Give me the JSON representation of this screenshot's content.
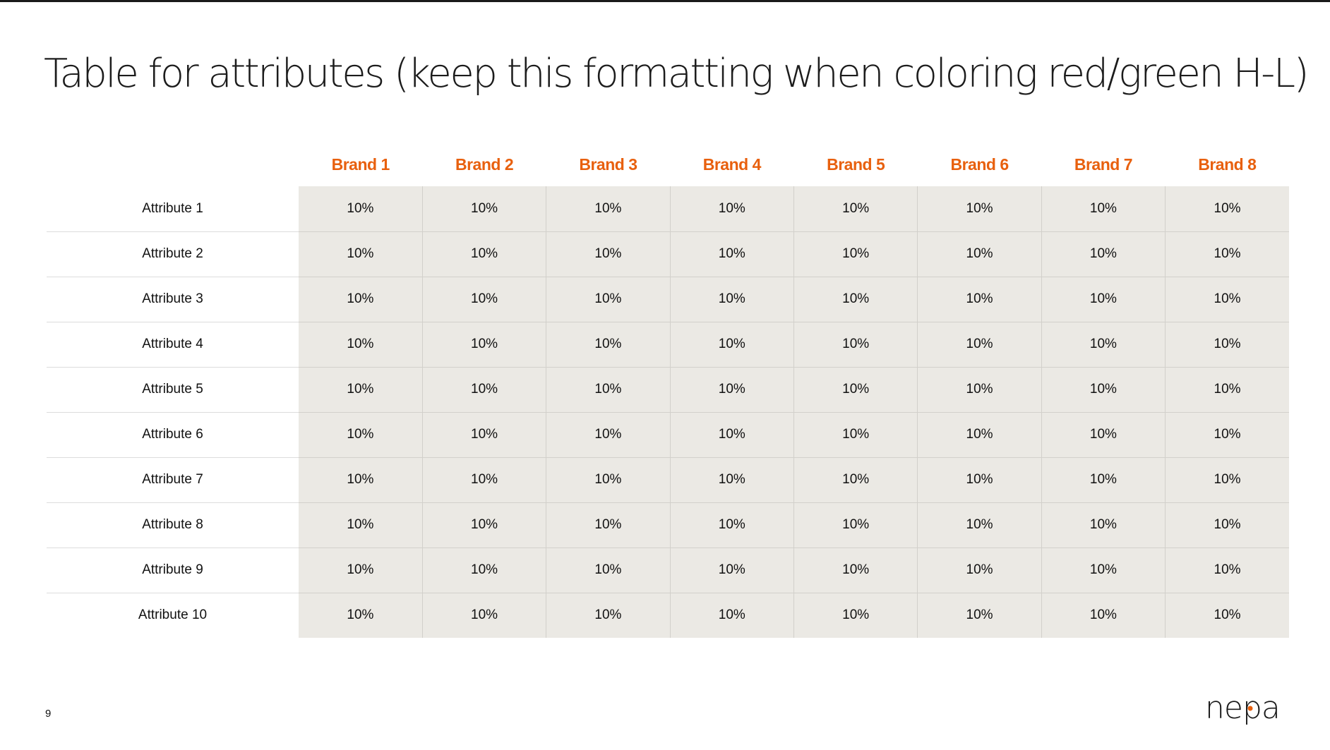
{
  "slide": {
    "title": "Table for attributes (keep this formatting when coloring red/green H-L)",
    "page_number": "9",
    "logo_text": "nepa"
  },
  "colors": {
    "header_text": "#e8600e",
    "cell_background": "#ebe9e4",
    "logo_dot": "#e8600e"
  },
  "table": {
    "columns": [
      "Brand 1",
      "Brand 2",
      "Brand 3",
      "Brand 4",
      "Brand 5",
      "Brand 6",
      "Brand 7",
      "Brand 8"
    ],
    "rows": [
      {
        "label": "Attribute 1",
        "values": [
          "10%",
          "10%",
          "10%",
          "10%",
          "10%",
          "10%",
          "10%",
          "10%"
        ]
      },
      {
        "label": "Attribute 2",
        "values": [
          "10%",
          "10%",
          "10%",
          "10%",
          "10%",
          "10%",
          "10%",
          "10%"
        ]
      },
      {
        "label": "Attribute 3",
        "values": [
          "10%",
          "10%",
          "10%",
          "10%",
          "10%",
          "10%",
          "10%",
          "10%"
        ]
      },
      {
        "label": "Attribute 4",
        "values": [
          "10%",
          "10%",
          "10%",
          "10%",
          "10%",
          "10%",
          "10%",
          "10%"
        ]
      },
      {
        "label": "Attribute 5",
        "values": [
          "10%",
          "10%",
          "10%",
          "10%",
          "10%",
          "10%",
          "10%",
          "10%"
        ]
      },
      {
        "label": "Attribute 6",
        "values": [
          "10%",
          "10%",
          "10%",
          "10%",
          "10%",
          "10%",
          "10%",
          "10%"
        ]
      },
      {
        "label": "Attribute 7",
        "values": [
          "10%",
          "10%",
          "10%",
          "10%",
          "10%",
          "10%",
          "10%",
          "10%"
        ]
      },
      {
        "label": "Attribute 8",
        "values": [
          "10%",
          "10%",
          "10%",
          "10%",
          "10%",
          "10%",
          "10%",
          "10%"
        ]
      },
      {
        "label": "Attribute 9",
        "values": [
          "10%",
          "10%",
          "10%",
          "10%",
          "10%",
          "10%",
          "10%",
          "10%"
        ]
      },
      {
        "label": "Attribute 10",
        "values": [
          "10%",
          "10%",
          "10%",
          "10%",
          "10%",
          "10%",
          "10%",
          "10%"
        ]
      }
    ]
  }
}
